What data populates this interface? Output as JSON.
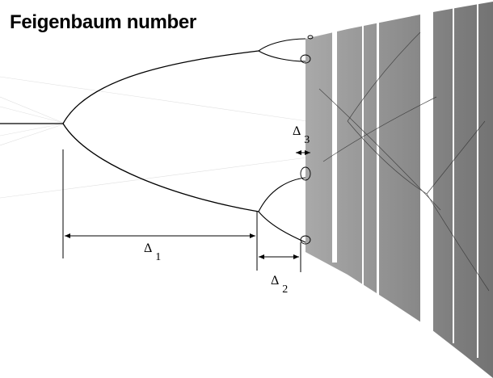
{
  "title": "Feigenbaum number",
  "labels": {
    "delta_1": {
      "symbol": "Δ",
      "index": "1"
    },
    "delta_2": {
      "symbol": "Δ",
      "index": "2"
    },
    "delta_3": {
      "symbol": "Δ",
      "index": "3"
    }
  },
  "colors": {
    "background": "#ffffff",
    "ink": "#000000",
    "chaos_band": "#7a7a7a"
  }
}
